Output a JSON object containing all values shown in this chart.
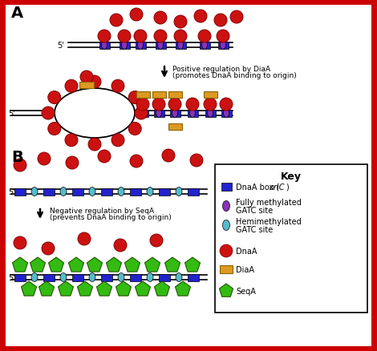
{
  "background_color": "#ffffff",
  "border_color": "#cc0000",
  "colors": {
    "dna_line": "#000000",
    "dnaA_box": "#2222cc",
    "fully_methylated": "#8833bb",
    "hemi_methylated": "#55bbcc",
    "dnaA_protein": "#cc1111",
    "diaA_protein": "#dd9922",
    "seqA_protein": "#33bb11"
  },
  "label_A": "A",
  "label_B": "B",
  "five_prime": "5'",
  "pos_reg_text_line1": "Positive regulation by DiaA",
  "pos_reg_text_line2": "(promotes DnaA binding to origin)",
  "neg_reg_text_line1": "Negative regulation by SeqA",
  "neg_reg_text_line2": "(prevents DnaA binding to origin)",
  "key_title": "Key",
  "key_line1a": "DnaA box (",
  "key_line1b": "oriC",
  "key_line1c": ")",
  "key_line2a": "Fully methylated",
  "key_line2b": "GATC site",
  "key_line3a": "Hemimethylated",
  "key_line3b": "GATC site",
  "key_line4": "DnaA",
  "key_line5": "DiaA",
  "key_line6": "SeqA"
}
